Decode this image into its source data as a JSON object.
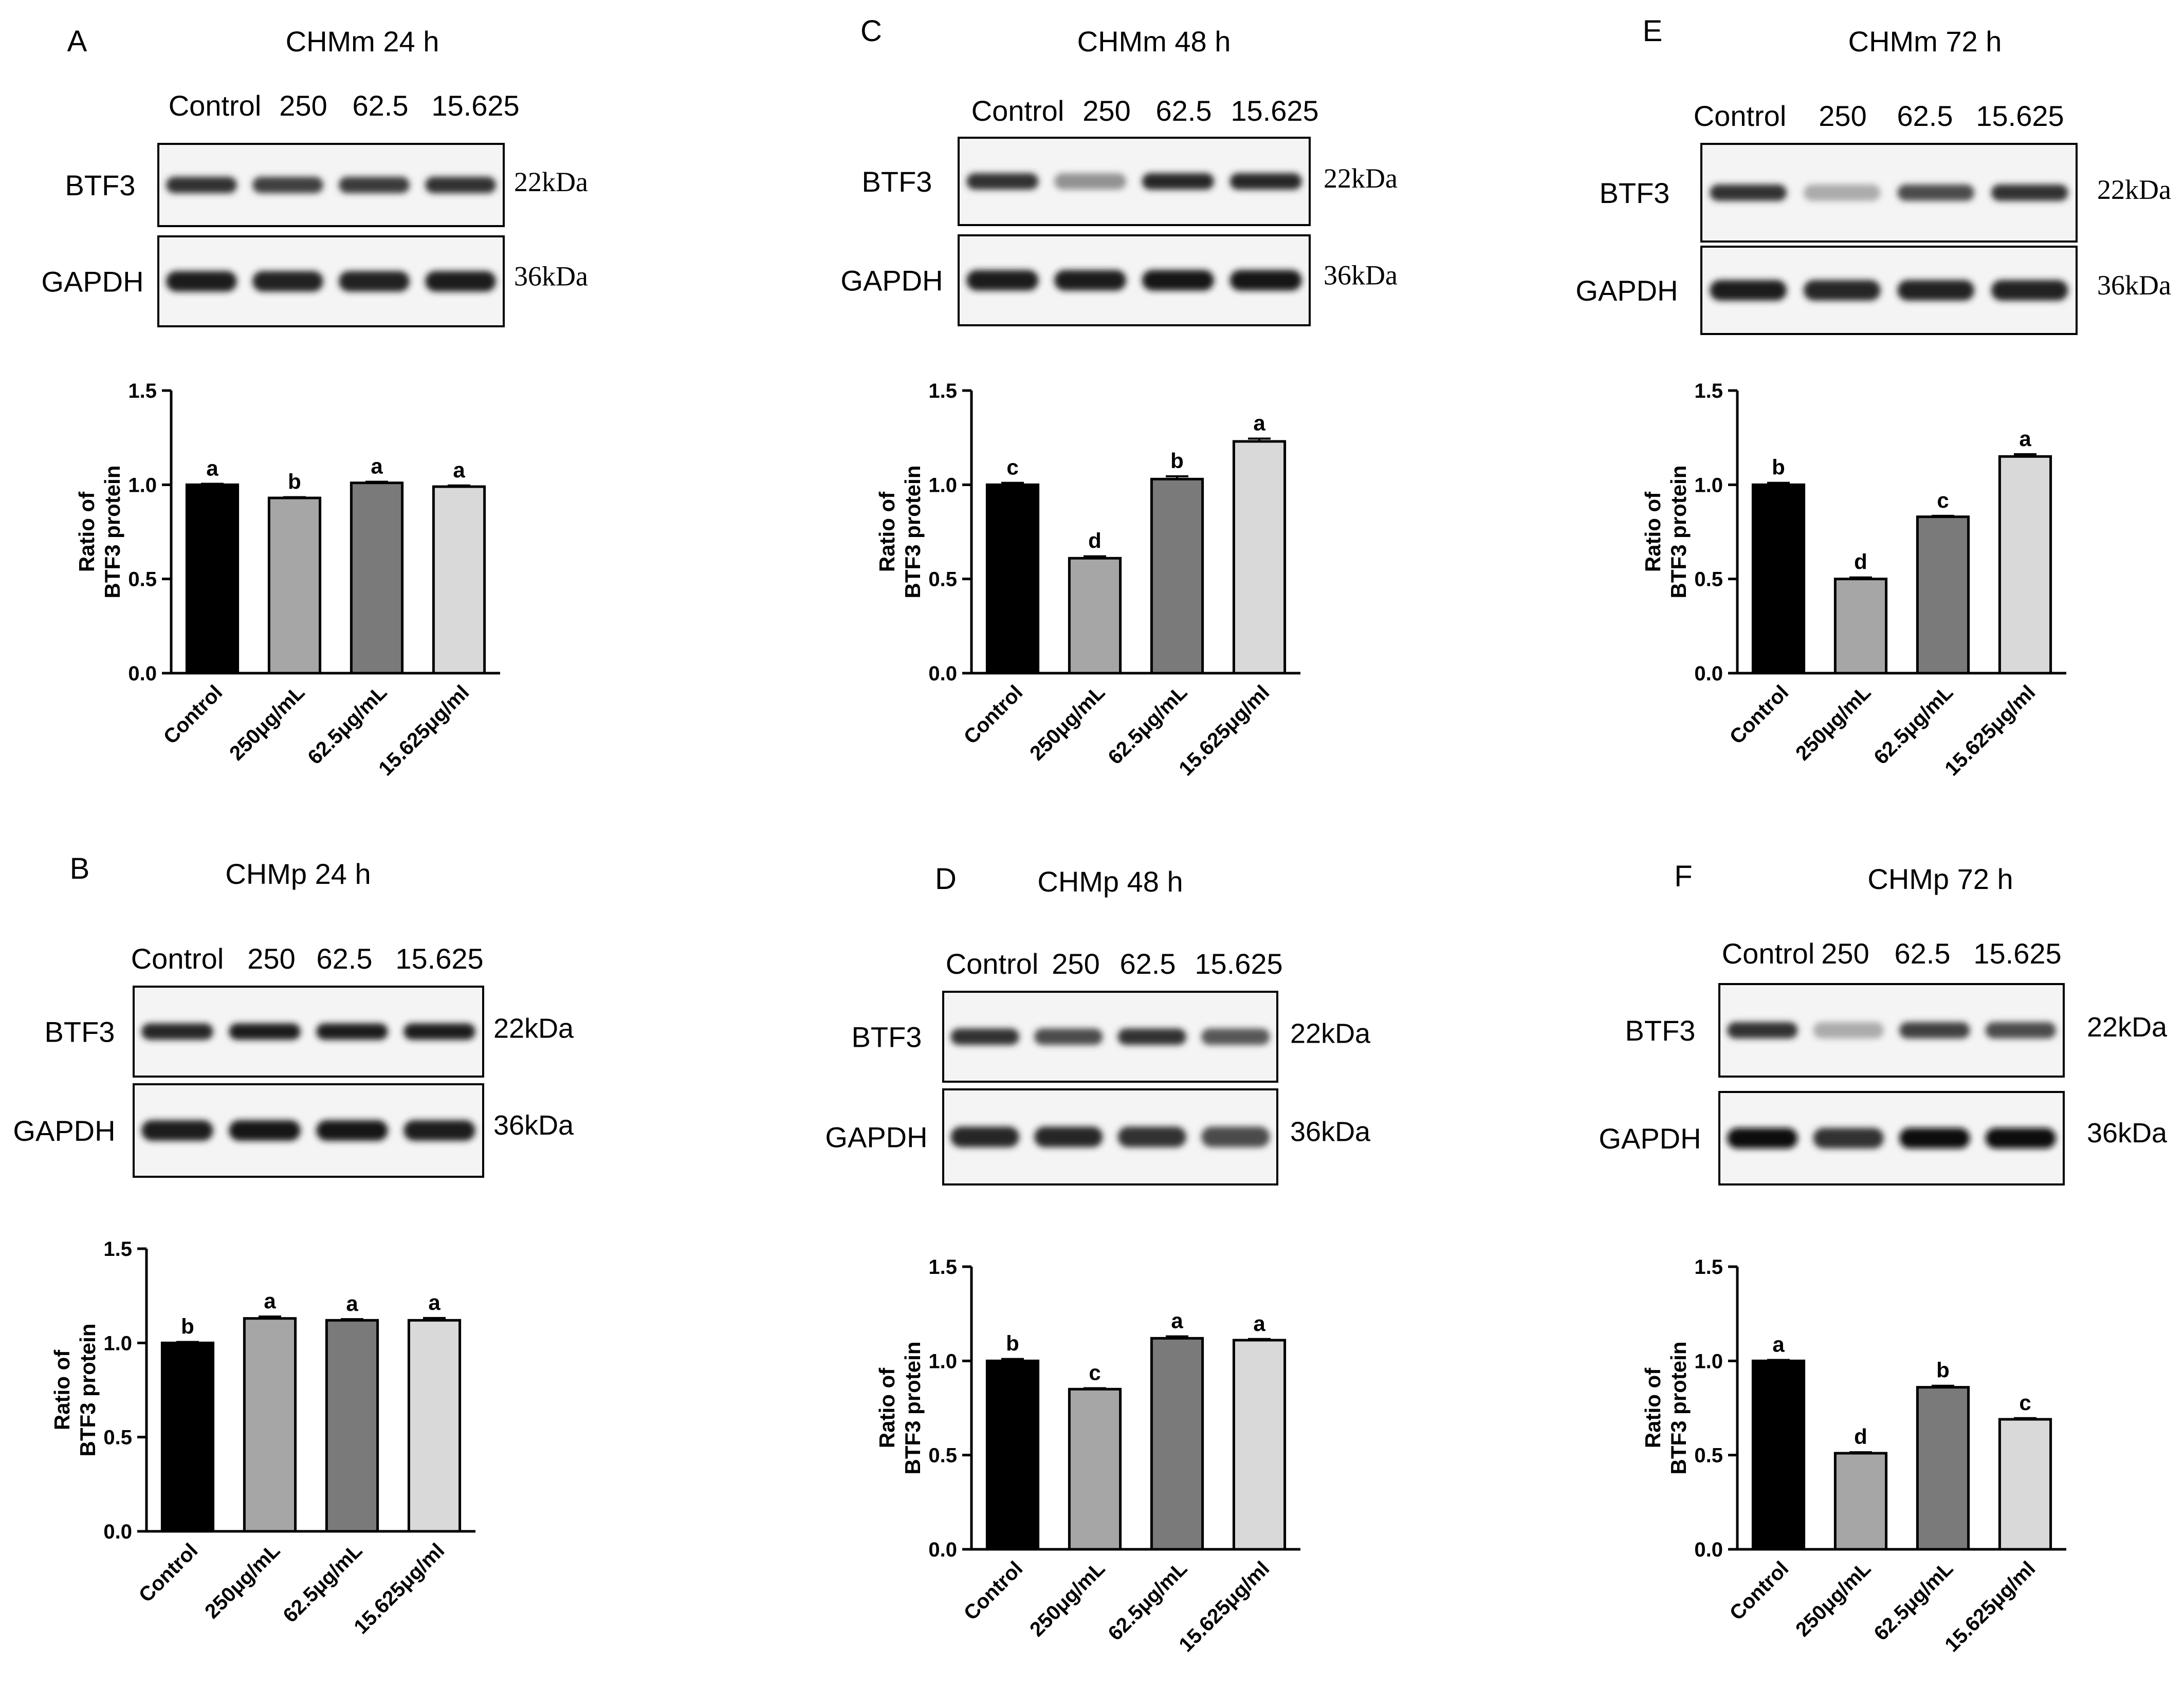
{
  "figure": {
    "lane_labels": [
      "Control",
      "250",
      "62.5",
      "15.625"
    ],
    "mw_labels": {
      "BTF3": "22kDa",
      "GAPDH": "36kDa"
    },
    "blot_rows": [
      "BTF3",
      "GAPDH"
    ]
  },
  "chart_data": [
    {
      "panel": "A",
      "title": "CHMm 24 h",
      "type": "bar",
      "categories": [
        "Control",
        "250μg/mL",
        "62.5μg/mL",
        "15.625μg/ml"
      ],
      "values": [
        1.0,
        0.93,
        1.01,
        0.99
      ],
      "errors": [
        0.005,
        0.004,
        0.006,
        0.006
      ],
      "letters": [
        "a",
        "b",
        "a",
        "a"
      ],
      "ylabel": "Ratio of\nBTF3 protein",
      "ylim": [
        0,
        1.5
      ],
      "yticks": [
        "0.0",
        "0.5",
        "1.0",
        "1.5"
      ],
      "colors": [
        "#000000",
        "#a6a6a6",
        "#7a7a7a",
        "#d9d9d9"
      ],
      "band_intensity": {
        "BTF3": [
          0.85,
          0.8,
          0.82,
          0.85
        ],
        "GAPDH": [
          0.95,
          0.92,
          0.92,
          0.95
        ]
      }
    },
    {
      "panel": "B",
      "title": "CHMp 24 h",
      "type": "bar",
      "categories": [
        "Control",
        "250μg/mL",
        "62.5μg/mL",
        "15.625μg/ml"
      ],
      "values": [
        1.0,
        1.13,
        1.12,
        1.12
      ],
      "errors": [
        0.005,
        0.01,
        0.006,
        0.012
      ],
      "letters": [
        "b",
        "a",
        "a",
        "a"
      ],
      "ylabel": "Ratio of\nBTF3 protein",
      "ylim": [
        0,
        1.5
      ],
      "yticks": [
        "0.0",
        "0.5",
        "1.0",
        "1.5"
      ],
      "colors": [
        "#000000",
        "#a6a6a6",
        "#7a7a7a",
        "#d9d9d9"
      ],
      "band_intensity": {
        "BTF3": [
          0.9,
          0.95,
          0.95,
          0.95
        ],
        "GAPDH": [
          0.95,
          0.97,
          0.97,
          0.95
        ]
      }
    },
    {
      "panel": "C",
      "title": "CHMm 48 h",
      "type": "bar",
      "categories": [
        "Control",
        "250μg/mL",
        "62.5μg/mL",
        "15.625μg/ml"
      ],
      "values": [
        1.0,
        0.61,
        1.03,
        1.23
      ],
      "errors": [
        0.01,
        0.01,
        0.015,
        0.015
      ],
      "letters": [
        "c",
        "d",
        "b",
        "a"
      ],
      "ylabel": "Ratio of\nBTF3 protein",
      "ylim": [
        0,
        1.5
      ],
      "yticks": [
        "0.0",
        "0.5",
        "1.0",
        "1.5"
      ],
      "colors": [
        "#000000",
        "#a6a6a6",
        "#7a7a7a",
        "#d9d9d9"
      ],
      "band_intensity": {
        "BTF3": [
          0.85,
          0.45,
          0.9,
          0.9
        ],
        "GAPDH": [
          0.95,
          0.95,
          0.97,
          0.97
        ]
      }
    },
    {
      "panel": "D",
      "title": "CHMp 48 h",
      "type": "bar",
      "categories": [
        "Control",
        "250μg/mL",
        "62.5μg/mL",
        "15.625μg/ml"
      ],
      "values": [
        1.0,
        0.85,
        1.12,
        1.11
      ],
      "errors": [
        0.01,
        0.005,
        0.01,
        0.006
      ],
      "letters": [
        "b",
        "c",
        "a",
        "a"
      ],
      "ylabel": "Ratio of\nBTF3 protein",
      "ylim": [
        0,
        1.5
      ],
      "yticks": [
        "0.0",
        "0.5",
        "1.0",
        "1.5"
      ],
      "colors": [
        "#000000",
        "#a6a6a6",
        "#7a7a7a",
        "#d9d9d9"
      ],
      "band_intensity": {
        "BTF3": [
          0.85,
          0.75,
          0.85,
          0.7
        ],
        "GAPDH": [
          0.9,
          0.9,
          0.85,
          0.75
        ]
      }
    },
    {
      "panel": "E",
      "title": "CHMm 72 h",
      "type": "bar",
      "categories": [
        "Control",
        "250μg/mL",
        "62.5μg/mL",
        "15.625μg/ml"
      ],
      "values": [
        1.0,
        0.5,
        0.83,
        1.15
      ],
      "errors": [
        0.01,
        0.008,
        0.005,
        0.012
      ],
      "letters": [
        "b",
        "d",
        "c",
        "a"
      ],
      "ylabel": "Ratio of\nBTF3 protein",
      "ylim": [
        0,
        1.5
      ],
      "yticks": [
        "0.0",
        "0.5",
        "1.0",
        "1.5"
      ],
      "colors": [
        "#000000",
        "#a6a6a6",
        "#7a7a7a",
        "#d9d9d9"
      ],
      "band_intensity": {
        "BTF3": [
          0.85,
          0.35,
          0.75,
          0.85
        ],
        "GAPDH": [
          0.95,
          0.9,
          0.92,
          0.92
        ]
      }
    },
    {
      "panel": "F",
      "title": "CHMp 72 h",
      "type": "bar",
      "categories": [
        "Control",
        "250μg/mL",
        "62.5μg/mL",
        "15.625μg/ml"
      ],
      "values": [
        1.0,
        0.51,
        0.86,
        0.69
      ],
      "errors": [
        0.005,
        0.005,
        0.008,
        0.006
      ],
      "letters": [
        "a",
        "d",
        "b",
        "c"
      ],
      "ylabel": "Ratio of\nBTF3 protein",
      "ylim": [
        0,
        1.5
      ],
      "yticks": [
        "0.0",
        "0.5",
        "1.0",
        "1.5"
      ],
      "colors": [
        "#000000",
        "#a6a6a6",
        "#7a7a7a",
        "#d9d9d9"
      ],
      "band_intensity": {
        "BTF3": [
          0.85,
          0.35,
          0.8,
          0.75
        ],
        "GAPDH": [
          1.0,
          0.85,
          1.0,
          1.0
        ]
      }
    }
  ]
}
